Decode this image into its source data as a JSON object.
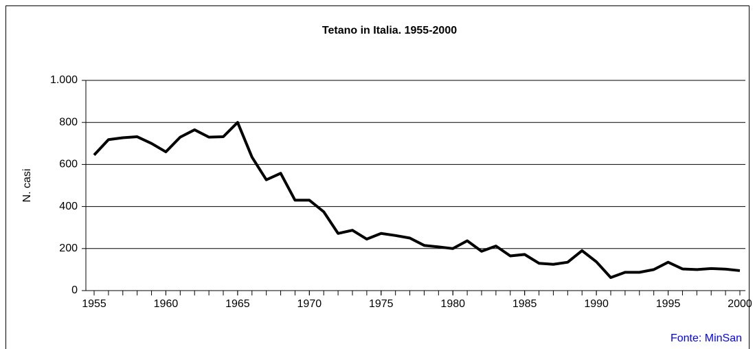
{
  "chart_data": {
    "type": "line",
    "title": "Tetano in Italia. 1955-2000",
    "ylabel": "N. casi",
    "annotation": "Fonte: MinSan",
    "x": [
      1955,
      1956,
      1957,
      1958,
      1959,
      1960,
      1961,
      1962,
      1963,
      1964,
      1965,
      1966,
      1967,
      1968,
      1969,
      1970,
      1971,
      1972,
      1973,
      1974,
      1975,
      1976,
      1977,
      1978,
      1979,
      1980,
      1981,
      1982,
      1983,
      1984,
      1985,
      1986,
      1987,
      1988,
      1989,
      1990,
      1991,
      1992,
      1993,
      1994,
      1995,
      1996,
      1997,
      1998,
      1999,
      2000
    ],
    "series": [
      {
        "name": "N. casi",
        "color": "#000000",
        "values": [
          645,
          718,
          727,
          732,
          700,
          660,
          730,
          765,
          730,
          732,
          800,
          635,
          527,
          558,
          430,
          430,
          375,
          272,
          287,
          245,
          272,
          262,
          250,
          215,
          208,
          200,
          237,
          187,
          212,
          165,
          172,
          130,
          125,
          135,
          190,
          137,
          62,
          87,
          87,
          100,
          135,
          103,
          100,
          105,
          102,
          95
        ]
      }
    ],
    "xlim": [
      1955,
      2000
    ],
    "xticks": [
      1955,
      1960,
      1965,
      1970,
      1975,
      1980,
      1985,
      1990,
      1995,
      2000
    ],
    "ylim": [
      0,
      1000
    ],
    "yticks": [
      0,
      200,
      400,
      600,
      800,
      {
        "value": 1000,
        "label": "1.000"
      }
    ],
    "grid": true
  }
}
